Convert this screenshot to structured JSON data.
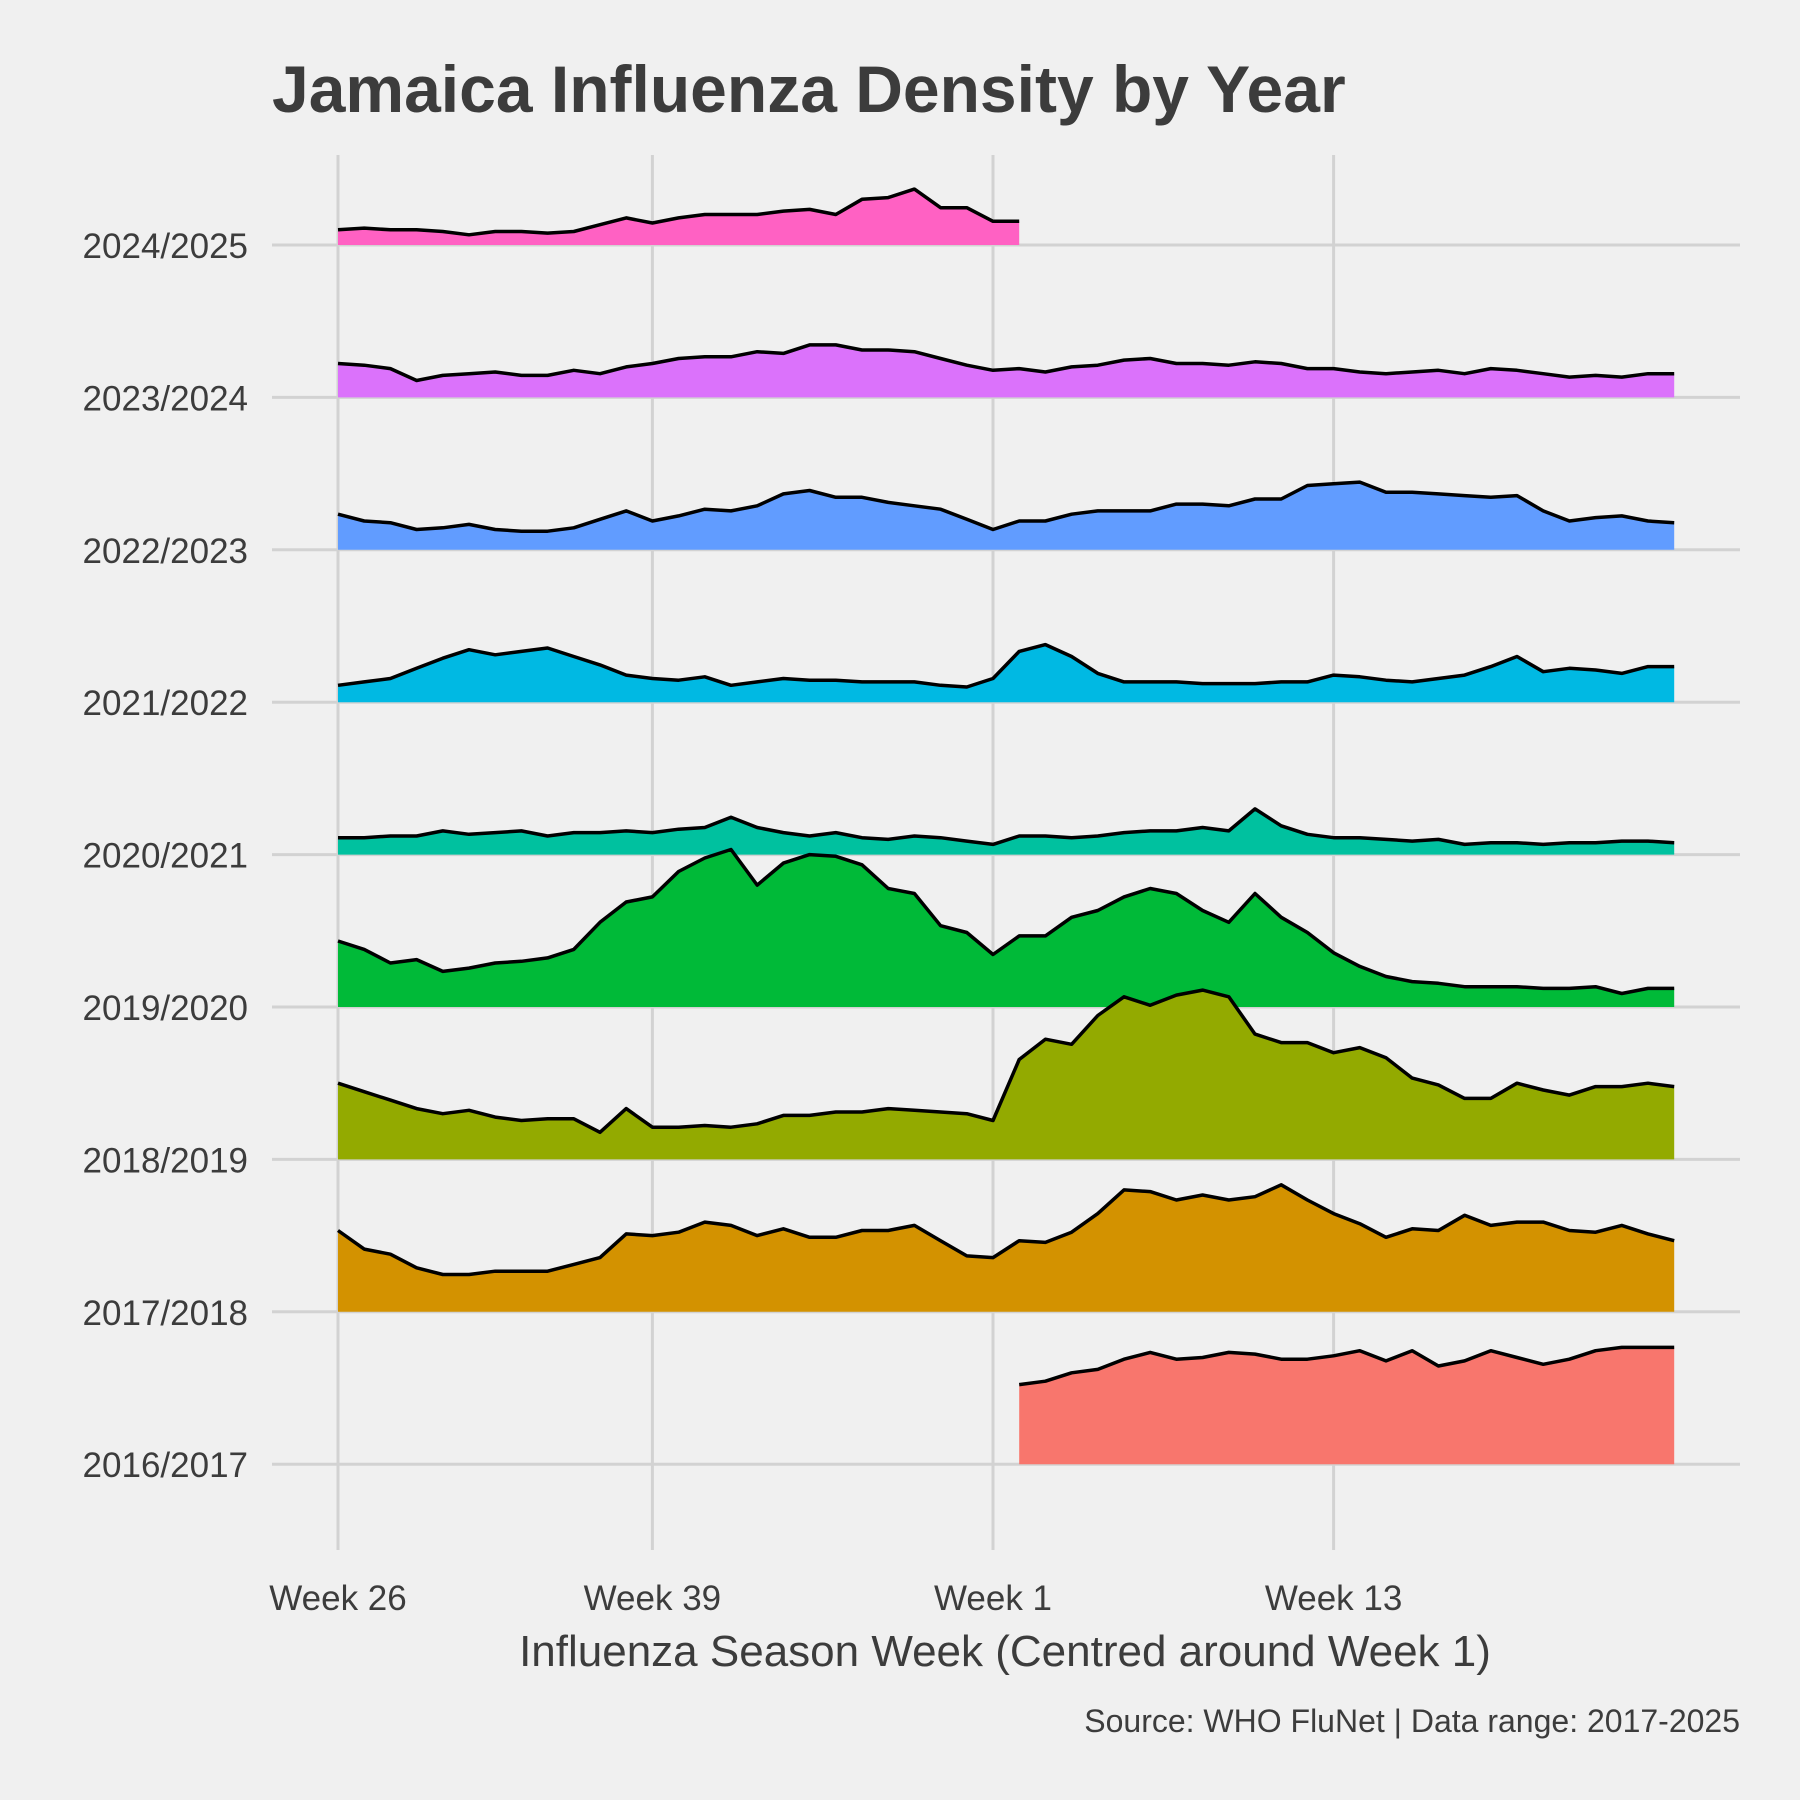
{
  "chart_data": {
    "type": "area",
    "title": "Jamaica Influenza Density by Year",
    "xlabel": "Influenza Season Week (Centred around Week 1)",
    "ylabel": "",
    "caption": "Source: WHO FluNet | Data range: 2017-2025",
    "x_ticks": [
      {
        "label": "Week 26",
        "index": 0
      },
      {
        "label": "Week 39",
        "index": 12
      },
      {
        "label": "Week 1",
        "index": 25
      },
      {
        "label": "Week 13",
        "index": 38
      }
    ],
    "x_range": [
      0,
      51
    ],
    "density_scale_max": 0.9,
    "grid": true,
    "legend": "none",
    "series": [
      {
        "name": "2016/2017",
        "color": "#f8766d",
        "start_index": 26,
        "values": [
          0.47,
          0.49,
          0.54,
          0.56,
          0.62,
          0.66,
          0.62,
          0.63,
          0.66,
          0.65,
          0.62,
          0.62,
          0.64,
          0.67,
          0.61,
          0.67,
          0.58,
          0.61,
          0.67,
          0.63,
          0.59,
          0.62,
          0.67,
          0.69,
          0.69,
          0.69
        ]
      },
      {
        "name": "2017/2018",
        "color": "#d39200",
        "start_index": 0,
        "values": [
          0.48,
          0.37,
          0.34,
          0.26,
          0.22,
          0.22,
          0.24,
          0.24,
          0.24,
          0.28,
          0.32,
          0.46,
          0.45,
          0.47,
          0.53,
          0.51,
          0.45,
          0.49,
          0.44,
          0.44,
          0.48,
          0.48,
          0.51,
          0.42,
          0.33,
          0.32,
          0.42,
          0.41,
          0.47,
          0.58,
          0.72,
          0.71,
          0.66,
          0.69,
          0.66,
          0.68,
          0.75,
          0.66,
          0.58,
          0.52,
          0.44,
          0.49,
          0.48,
          0.57,
          0.51,
          0.53,
          0.53,
          0.48,
          0.47,
          0.51,
          0.46,
          0.42
        ]
      },
      {
        "name": "2018/2019",
        "color": "#93aa00",
        "start_index": 0,
        "values": [
          0.45,
          0.4,
          0.35,
          0.3,
          0.27,
          0.29,
          0.25,
          0.23,
          0.24,
          0.24,
          0.16,
          0.3,
          0.19,
          0.19,
          0.2,
          0.19,
          0.21,
          0.26,
          0.26,
          0.28,
          0.28,
          0.3,
          0.29,
          0.28,
          0.27,
          0.23,
          0.59,
          0.71,
          0.68,
          0.85,
          0.96,
          0.91,
          0.97,
          1.0,
          0.96,
          0.74,
          0.69,
          0.69,
          0.63,
          0.66,
          0.6,
          0.48,
          0.44,
          0.36,
          0.36,
          0.45,
          0.41,
          0.38,
          0.43,
          0.43,
          0.45,
          0.43
        ]
      },
      {
        "name": "2019/2020",
        "color": "#00ba38",
        "start_index": 0,
        "values": [
          0.39,
          0.34,
          0.26,
          0.28,
          0.21,
          0.23,
          0.26,
          0.27,
          0.29,
          0.34,
          0.5,
          0.62,
          0.65,
          0.8,
          0.88,
          0.93,
          0.72,
          0.85,
          0.9,
          0.89,
          0.84,
          0.7,
          0.67,
          0.48,
          0.44,
          0.31,
          0.42,
          0.42,
          0.53,
          0.57,
          0.65,
          0.7,
          0.67,
          0.57,
          0.5,
          0.67,
          0.53,
          0.44,
          0.32,
          0.24,
          0.18,
          0.15,
          0.14,
          0.12,
          0.12,
          0.12,
          0.11,
          0.11,
          0.12,
          0.08,
          0.11,
          0.11
        ]
      },
      {
        "name": "2020/2021",
        "color": "#00c19f",
        "start_index": 0,
        "values": [
          0.1,
          0.1,
          0.11,
          0.11,
          0.14,
          0.12,
          0.13,
          0.14,
          0.11,
          0.13,
          0.13,
          0.14,
          0.13,
          0.15,
          0.16,
          0.22,
          0.16,
          0.13,
          0.11,
          0.13,
          0.1,
          0.09,
          0.11,
          0.1,
          0.08,
          0.06,
          0.11,
          0.11,
          0.1,
          0.11,
          0.13,
          0.14,
          0.14,
          0.16,
          0.14,
          0.27,
          0.17,
          0.12,
          0.1,
          0.1,
          0.09,
          0.08,
          0.09,
          0.06,
          0.07,
          0.07,
          0.06,
          0.07,
          0.07,
          0.08,
          0.08,
          0.07
        ]
      },
      {
        "name": "2021/2022",
        "color": "#00b9e3",
        "start_index": 0,
        "values": [
          0.1,
          0.12,
          0.14,
          0.2,
          0.26,
          0.31,
          0.28,
          0.3,
          0.32,
          0.27,
          0.22,
          0.16,
          0.14,
          0.13,
          0.15,
          0.1,
          0.12,
          0.14,
          0.13,
          0.13,
          0.12,
          0.12,
          0.12,
          0.1,
          0.09,
          0.14,
          0.3,
          0.34,
          0.27,
          0.17,
          0.12,
          0.12,
          0.12,
          0.11,
          0.11,
          0.11,
          0.12,
          0.12,
          0.16,
          0.15,
          0.13,
          0.12,
          0.14,
          0.16,
          0.21,
          0.27,
          0.18,
          0.2,
          0.19,
          0.17,
          0.21,
          0.21
        ]
      },
      {
        "name": "2022/2023",
        "color": "#619cff",
        "start_index": 0,
        "values": [
          0.21,
          0.17,
          0.16,
          0.12,
          0.13,
          0.15,
          0.12,
          0.11,
          0.11,
          0.13,
          0.18,
          0.23,
          0.17,
          0.2,
          0.24,
          0.23,
          0.26,
          0.33,
          0.35,
          0.31,
          0.31,
          0.28,
          0.26,
          0.24,
          0.18,
          0.12,
          0.17,
          0.17,
          0.21,
          0.23,
          0.23,
          0.23,
          0.27,
          0.27,
          0.26,
          0.3,
          0.3,
          0.38,
          0.39,
          0.4,
          0.34,
          0.34,
          0.33,
          0.32,
          0.31,
          0.32,
          0.23,
          0.17,
          0.19,
          0.2,
          0.17,
          0.16
        ]
      },
      {
        "name": "2023/2024",
        "color": "#db72fb",
        "start_index": 0,
        "values": [
          0.2,
          0.19,
          0.17,
          0.1,
          0.13,
          0.14,
          0.15,
          0.13,
          0.13,
          0.16,
          0.14,
          0.18,
          0.2,
          0.23,
          0.24,
          0.24,
          0.27,
          0.26,
          0.31,
          0.31,
          0.28,
          0.28,
          0.27,
          0.23,
          0.19,
          0.16,
          0.17,
          0.15,
          0.18,
          0.19,
          0.22,
          0.23,
          0.2,
          0.2,
          0.19,
          0.21,
          0.2,
          0.17,
          0.17,
          0.15,
          0.14,
          0.15,
          0.16,
          0.14,
          0.17,
          0.16,
          0.14,
          0.12,
          0.13,
          0.12,
          0.14,
          0.14
        ]
      },
      {
        "name": "2024/2025",
        "color": "#ff61c3",
        "start_index": 0,
        "values": [
          0.09,
          0.1,
          0.09,
          0.09,
          0.08,
          0.06,
          0.08,
          0.08,
          0.07,
          0.08,
          0.12,
          0.16,
          0.13,
          0.16,
          0.18,
          0.18,
          0.18,
          0.2,
          0.21,
          0.18,
          0.27,
          0.28,
          0.33,
          0.22,
          0.22,
          0.14,
          0.14
        ]
      }
    ]
  }
}
